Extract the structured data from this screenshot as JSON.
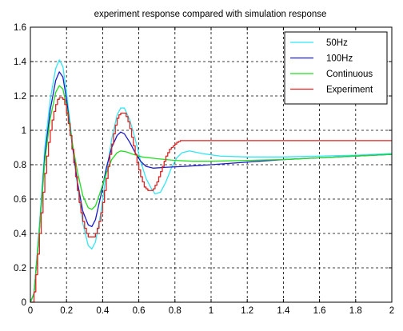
{
  "chart_data": {
    "type": "line",
    "title": "experiment response compared with simulation response",
    "xlabel": "",
    "ylabel": "",
    "xlim": [
      0,
      2
    ],
    "ylim": [
      0,
      1.6
    ],
    "x_ticks": [
      "0",
      "0.2",
      "0.4",
      "0.6",
      "0.8",
      "1",
      "1.2",
      "1.4",
      "1.6",
      "1.8",
      "2"
    ],
    "y_ticks": [
      "0",
      "0.2",
      "0.4",
      "0.6",
      "0.8",
      "1",
      "1.2",
      "1.4",
      "1.6"
    ],
    "grid": true,
    "legend_position": "top-right",
    "series": [
      {
        "name": "50Hz",
        "color": "#33e6f2",
        "step": false,
        "points": [
          [
            0,
            0
          ],
          [
            0.02,
            0.05
          ],
          [
            0.05,
            0.45
          ],
          [
            0.08,
            0.9
          ],
          [
            0.11,
            1.18
          ],
          [
            0.14,
            1.36
          ],
          [
            0.16,
            1.41
          ],
          [
            0.18,
            1.37
          ],
          [
            0.2,
            1.22
          ],
          [
            0.23,
            0.95
          ],
          [
            0.26,
            0.68
          ],
          [
            0.29,
            0.46
          ],
          [
            0.32,
            0.33
          ],
          [
            0.34,
            0.31
          ],
          [
            0.36,
            0.35
          ],
          [
            0.39,
            0.52
          ],
          [
            0.42,
            0.75
          ],
          [
            0.45,
            0.95
          ],
          [
            0.48,
            1.09
          ],
          [
            0.5,
            1.13
          ],
          [
            0.52,
            1.13
          ],
          [
            0.55,
            1.06
          ],
          [
            0.58,
            0.95
          ],
          [
            0.61,
            0.82
          ],
          [
            0.64,
            0.72
          ],
          [
            0.67,
            0.66
          ],
          [
            0.69,
            0.63
          ],
          [
            0.72,
            0.64
          ],
          [
            0.75,
            0.7
          ],
          [
            0.78,
            0.78
          ],
          [
            0.81,
            0.84
          ],
          [
            0.84,
            0.87
          ],
          [
            0.88,
            0.88
          ],
          [
            0.95,
            0.865
          ],
          [
            1.05,
            0.85
          ],
          [
            1.2,
            0.845
          ],
          [
            1.4,
            0.845
          ],
          [
            1.6,
            0.85
          ],
          [
            1.8,
            0.855
          ],
          [
            2.0,
            0.865
          ]
        ]
      },
      {
        "name": "100Hz",
        "color": "#1a1ac8",
        "step": false,
        "points": [
          [
            0,
            0
          ],
          [
            0.02,
            0.05
          ],
          [
            0.05,
            0.42
          ],
          [
            0.08,
            0.85
          ],
          [
            0.11,
            1.12
          ],
          [
            0.14,
            1.29
          ],
          [
            0.16,
            1.34
          ],
          [
            0.18,
            1.31
          ],
          [
            0.2,
            1.18
          ],
          [
            0.23,
            0.93
          ],
          [
            0.26,
            0.7
          ],
          [
            0.29,
            0.53
          ],
          [
            0.32,
            0.45
          ],
          [
            0.34,
            0.44
          ],
          [
            0.36,
            0.48
          ],
          [
            0.39,
            0.62
          ],
          [
            0.42,
            0.78
          ],
          [
            0.45,
            0.9
          ],
          [
            0.48,
            0.97
          ],
          [
            0.5,
            0.99
          ],
          [
            0.52,
            0.98
          ],
          [
            0.55,
            0.93
          ],
          [
            0.58,
            0.87
          ],
          [
            0.61,
            0.82
          ],
          [
            0.64,
            0.79
          ],
          [
            0.68,
            0.78
          ],
          [
            0.75,
            0.785
          ],
          [
            0.85,
            0.79
          ],
          [
            1.0,
            0.8
          ],
          [
            1.2,
            0.815
          ],
          [
            1.4,
            0.83
          ],
          [
            1.6,
            0.84
          ],
          [
            1.8,
            0.85
          ],
          [
            2.0,
            0.86
          ]
        ]
      },
      {
        "name": "Continuous",
        "color": "#22dd22",
        "step": false,
        "points": [
          [
            0,
            0
          ],
          [
            0.02,
            0.05
          ],
          [
            0.05,
            0.42
          ],
          [
            0.08,
            0.82
          ],
          [
            0.11,
            1.07
          ],
          [
            0.14,
            1.22
          ],
          [
            0.16,
            1.26
          ],
          [
            0.18,
            1.24
          ],
          [
            0.2,
            1.14
          ],
          [
            0.23,
            0.94
          ],
          [
            0.26,
            0.76
          ],
          [
            0.29,
            0.62
          ],
          [
            0.32,
            0.55
          ],
          [
            0.34,
            0.54
          ],
          [
            0.36,
            0.56
          ],
          [
            0.39,
            0.65
          ],
          [
            0.42,
            0.75
          ],
          [
            0.45,
            0.83
          ],
          [
            0.48,
            0.87
          ],
          [
            0.5,
            0.88
          ],
          [
            0.53,
            0.875
          ],
          [
            0.57,
            0.86
          ],
          [
            0.62,
            0.845
          ],
          [
            0.7,
            0.835
          ],
          [
            0.8,
            0.825
          ],
          [
            0.9,
            0.82
          ],
          [
            1.0,
            0.82
          ],
          [
            1.2,
            0.825
          ],
          [
            1.4,
            0.83
          ],
          [
            1.6,
            0.84
          ],
          [
            1.8,
            0.85
          ],
          [
            2.0,
            0.86
          ]
        ]
      },
      {
        "name": "Experiment",
        "color": "#dd2222",
        "step": true,
        "points": [
          [
            0,
            0
          ],
          [
            0.01,
            0.0
          ],
          [
            0.02,
            0.06
          ],
          [
            0.03,
            0.16
          ],
          [
            0.04,
            0.28
          ],
          [
            0.05,
            0.4
          ],
          [
            0.06,
            0.52
          ],
          [
            0.07,
            0.64
          ],
          [
            0.08,
            0.75
          ],
          [
            0.09,
            0.85
          ],
          [
            0.1,
            0.93
          ],
          [
            0.11,
            1.0
          ],
          [
            0.12,
            1.06
          ],
          [
            0.13,
            1.11
          ],
          [
            0.14,
            1.15
          ],
          [
            0.15,
            1.18
          ],
          [
            0.16,
            1.19
          ],
          [
            0.17,
            1.19
          ],
          [
            0.18,
            1.18
          ],
          [
            0.19,
            1.15
          ],
          [
            0.2,
            1.1
          ],
          [
            0.21,
            1.04
          ],
          [
            0.22,
            0.97
          ],
          [
            0.23,
            0.89
          ],
          [
            0.24,
            0.81
          ],
          [
            0.25,
            0.73
          ],
          [
            0.26,
            0.65
          ],
          [
            0.27,
            0.58
          ],
          [
            0.28,
            0.52
          ],
          [
            0.29,
            0.47
          ],
          [
            0.3,
            0.43
          ],
          [
            0.31,
            0.4
          ],
          [
            0.32,
            0.38
          ],
          [
            0.33,
            0.38
          ],
          [
            0.34,
            0.38
          ],
          [
            0.35,
            0.38
          ],
          [
            0.36,
            0.4
          ],
          [
            0.37,
            0.43
          ],
          [
            0.38,
            0.47
          ],
          [
            0.39,
            0.52
          ],
          [
            0.4,
            0.58
          ],
          [
            0.41,
            0.65
          ],
          [
            0.42,
            0.72
          ],
          [
            0.43,
            0.79
          ],
          [
            0.44,
            0.86
          ],
          [
            0.45,
            0.92
          ],
          [
            0.46,
            0.98
          ],
          [
            0.47,
            1.03
          ],
          [
            0.48,
            1.07
          ],
          [
            0.49,
            1.09
          ],
          [
            0.5,
            1.1
          ],
          [
            0.51,
            1.1
          ],
          [
            0.52,
            1.1
          ],
          [
            0.53,
            1.08
          ],
          [
            0.54,
            1.05
          ],
          [
            0.55,
            1.01
          ],
          [
            0.56,
            0.96
          ],
          [
            0.57,
            0.91
          ],
          [
            0.58,
            0.86
          ],
          [
            0.59,
            0.81
          ],
          [
            0.6,
            0.77
          ],
          [
            0.61,
            0.73
          ],
          [
            0.62,
            0.7
          ],
          [
            0.63,
            0.67
          ],
          [
            0.64,
            0.66
          ],
          [
            0.65,
            0.65
          ],
          [
            0.66,
            0.65
          ],
          [
            0.67,
            0.65
          ],
          [
            0.68,
            0.66
          ],
          [
            0.69,
            0.68
          ],
          [
            0.7,
            0.7
          ],
          [
            0.71,
            0.73
          ],
          [
            0.72,
            0.76
          ],
          [
            0.73,
            0.79
          ],
          [
            0.74,
            0.82
          ],
          [
            0.75,
            0.85
          ],
          [
            0.76,
            0.87
          ],
          [
            0.77,
            0.89
          ],
          [
            0.78,
            0.9
          ],
          [
            0.79,
            0.91
          ],
          [
            0.8,
            0.92
          ],
          [
            0.81,
            0.93
          ],
          [
            0.82,
            0.935
          ],
          [
            0.83,
            0.94
          ],
          [
            0.84,
            0.94
          ],
          [
            0.85,
            0.94
          ],
          [
            2.0,
            0.94
          ]
        ]
      }
    ]
  }
}
